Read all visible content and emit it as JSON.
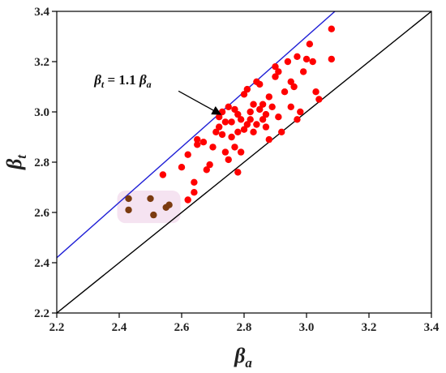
{
  "chart_data": {
    "type": "scatter",
    "title": "",
    "xlabel": {
      "symbol": "β",
      "sub": "a"
    },
    "ylabel": {
      "symbol": "β",
      "sub": "t"
    },
    "xlim": [
      2.2,
      3.4
    ],
    "ylim": [
      2.2,
      3.4
    ],
    "xticks": [
      "2.2",
      "2.4",
      "2.6",
      "2.8",
      "3.0",
      "3.2",
      "3.4"
    ],
    "yticks": [
      "2.2",
      "2.4",
      "2.6",
      "2.8",
      "3.0",
      "3.2",
      "3.4"
    ],
    "grid": false,
    "lines": [
      {
        "name": "identity",
        "slope": 1.0,
        "color": "#000000"
      },
      {
        "name": "upper-bound",
        "slope": 1.1,
        "color": "#1f1fd6"
      }
    ],
    "annotation": {
      "beta": "β",
      "sub_t": "t",
      "equals": " = 1.1 ",
      "sub_a": "a",
      "text_pos": [
        2.32,
        3.11
      ],
      "arrow_from": [
        2.59,
        3.083
      ],
      "arrow_to": [
        2.725,
        2.99
      ]
    },
    "highlight_color": "#f3dcee",
    "series": [
      {
        "color": "#ff0000",
        "x": [
          2.54,
          2.6,
          2.62,
          2.64,
          2.65,
          2.65,
          2.68,
          2.69,
          2.7,
          2.71,
          2.72,
          2.72,
          2.73,
          2.73,
          2.74,
          2.74,
          2.75,
          2.75,
          2.76,
          2.76,
          2.77,
          2.77,
          2.78,
          2.78,
          2.79,
          2.79,
          2.8,
          2.8,
          2.81,
          2.81,
          2.82,
          2.82,
          2.83,
          2.83,
          2.84,
          2.84,
          2.85,
          2.85,
          2.86,
          2.86,
          2.87,
          2.87,
          2.88,
          2.88,
          2.89,
          2.9,
          2.9,
          2.91,
          2.91,
          2.92,
          2.93,
          2.94,
          2.95,
          2.95,
          2.96,
          2.97,
          2.97,
          2.98,
          2.99,
          3.0,
          3.01,
          3.02,
          3.03,
          3.04,
          3.08,
          3.08,
          2.64,
          2.62,
          2.67,
          2.78
        ],
        "y": [
          2.75,
          2.78,
          2.83,
          2.72,
          2.89,
          2.87,
          2.77,
          2.79,
          2.86,
          2.92,
          2.98,
          2.94,
          3.0,
          2.91,
          2.96,
          2.84,
          3.02,
          2.81,
          2.9,
          2.96,
          3.01,
          2.86,
          2.92,
          2.99,
          2.97,
          2.84,
          2.93,
          3.07,
          3.09,
          2.95,
          2.97,
          3.0,
          3.03,
          2.92,
          2.95,
          3.12,
          3.01,
          3.11,
          2.97,
          3.03,
          2.94,
          2.99,
          3.06,
          2.89,
          3.02,
          3.14,
          3.18,
          2.98,
          3.16,
          2.92,
          3.08,
          3.2,
          3.02,
          3.12,
          3.1,
          3.22,
          2.97,
          3.0,
          3.16,
          3.21,
          3.27,
          3.2,
          3.08,
          3.05,
          3.21,
          3.33,
          2.68,
          2.65,
          2.88,
          2.76
        ]
      },
      {
        "color": "#7b3b10",
        "x": [
          2.43,
          2.43,
          2.5,
          2.51,
          2.55,
          2.56
        ],
        "y": [
          2.655,
          2.61,
          2.655,
          2.59,
          2.62,
          2.63
        ]
      }
    ]
  }
}
